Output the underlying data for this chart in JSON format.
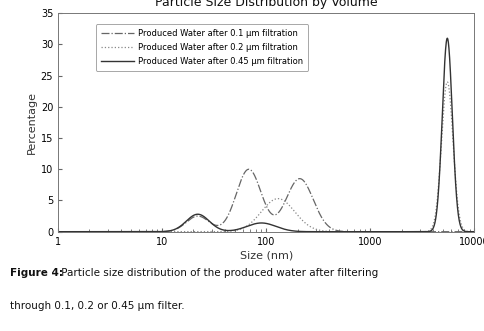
{
  "title": "Particle Size Distribution by Volume",
  "xlabel": "Size (nm)",
  "ylabel": "Percentage",
  "ylim": [
    0,
    35
  ],
  "yticks": [
    0,
    5,
    10,
    15,
    20,
    25,
    30,
    35
  ],
  "legend": [
    {
      "label": "Produced Water after 0.1 μm filtration",
      "style": "dashdot",
      "color": "#666666"
    },
    {
      "label": "Produced Water after 0.2 μm filtration",
      "style": "dotted",
      "color": "#888888"
    },
    {
      "label": "Produced Water after 0.45 μm filtration",
      "style": "solid",
      "color": "#333333"
    }
  ],
  "caption_bold": "Figure 4:",
  "caption_normal": " Particle size distribution of the produced water after filtering through 0.1, 0.2 or 0.45 μm filter.",
  "background_color": "#ffffff"
}
